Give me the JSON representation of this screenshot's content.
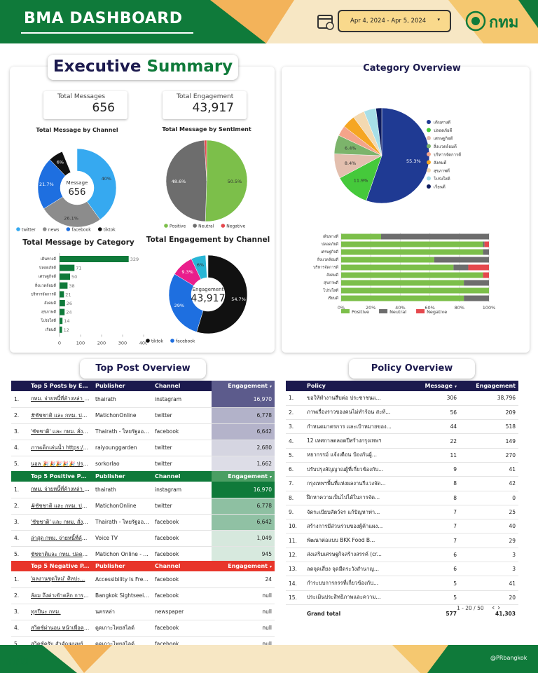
{
  "header": {
    "title": "BMA DASHBOARD",
    "date_range": "Apr 4, 2024 - Apr 5, 2024",
    "logo": "กทม"
  },
  "executive": {
    "title_a": "Executive",
    "title_b": "Summary",
    "kpis": [
      {
        "label": "Total Messages",
        "value": "656"
      },
      {
        "label": "Total Engagement",
        "value": "43,917"
      }
    ]
  },
  "chart_data": [
    {
      "type": "donut",
      "title": "Total Message by Channel",
      "center_label": "Message",
      "center_value": "656",
      "categories": [
        "twitter",
        "news",
        "facebook",
        "tiktok"
      ],
      "values": [
        40,
        26.1,
        21.7,
        6
      ],
      "value_labels": [
        "40%",
        "26.1%",
        "21.7%",
        "6%"
      ],
      "colors": [
        "#36a9f0",
        "#8c8c8c",
        "#1e6fe0",
        "#111111"
      ]
    },
    {
      "type": "pie",
      "title": "Total Message by Sentiment",
      "categories": [
        "Positive",
        "Neutral",
        "Negative"
      ],
      "values": [
        50.5,
        48.6,
        0.9
      ],
      "value_labels": [
        "50.5%",
        "48.6%",
        null
      ],
      "colors": [
        "#7cbf4a",
        "#6d6d6d",
        "#e5484d"
      ]
    },
    {
      "type": "hbar",
      "title": "Total Message by Category",
      "categories": [
        "เดินทางดี",
        "ปลอดภัยดี",
        "เศรษฐกิจดี",
        "สิ่งแวดล้อมดี",
        "บริหารจัดการดี",
        "สังคมดี",
        "สุขภาพดี",
        "โปร่งใสดี",
        "เรียนดี"
      ],
      "values": [
        329,
        71,
        50,
        38,
        21,
        26,
        24,
        14,
        12
      ],
      "color": "#0f7a3a",
      "xlim": [
        0,
        400
      ],
      "xticks": [
        0,
        100,
        200,
        300,
        400
      ]
    },
    {
      "type": "donut",
      "title": "Total Engagement by Channel",
      "center_label": "Engagement",
      "center_value": "43,917",
      "categories": [
        "tiktok",
        "facebook",
        null,
        null
      ],
      "values": [
        54.7,
        29,
        9.3,
        6
      ],
      "value_labels": [
        "54.7%",
        "29%",
        "9.3%",
        "6%"
      ],
      "colors": [
        "#111111",
        "#1e6fe0",
        "#e91e8c",
        "#29b6d6"
      ]
    },
    {
      "type": "pie",
      "title": "Category Overview",
      "categories": [
        "เดินทางดี",
        "ปลอดภัยดี",
        "เศรษฐกิจดี",
        "สิ่งแวดล้อมดี",
        "บริหารจัดการดี",
        "สังคมดี",
        "สุขภาพดี",
        "โปร่งใสดี",
        "เรียนดี"
      ],
      "values": [
        55.3,
        11.9,
        8.4,
        6.4,
        3.5,
        4.4,
        4,
        4.1,
        2
      ],
      "value_labels": [
        "55.3%",
        "11.9%",
        "8.4%",
        "6.4%",
        null,
        null,
        null,
        null,
        null
      ],
      "colors": [
        "#1f3a93",
        "#45c93b",
        "#e3bfae",
        "#7cb46b",
        "#f4a48a",
        "#f5a623",
        "#f3d9b1",
        "#a7dfe8",
        "#0d1b5e"
      ]
    },
    {
      "type": "stacked_hbar",
      "categories": [
        "เดินทางดี",
        "ปลอดภัยดี",
        "เศรษฐกิจดี",
        "สิ่งแวดล้อมดี",
        "บริหารจัดการดี",
        "สังคมดี",
        "สุขภาพดี",
        "โปร่งใสดี",
        "เรียนดี"
      ],
      "series": [
        {
          "name": "Positive",
          "color": "#7cbf4a",
          "values": [
            27,
            96,
            96,
            63,
            76,
            96,
            83,
            100,
            83
          ]
        },
        {
          "name": "Neutral",
          "color": "#6d6d6d",
          "values": [
            73,
            1,
            4,
            37,
            10,
            0,
            17,
            0,
            17
          ]
        },
        {
          "name": "Negative",
          "color": "#e5484d",
          "values": [
            0,
            3,
            0,
            0,
            14,
            4,
            0,
            0,
            0
          ]
        }
      ],
      "xlim": [
        0,
        100
      ],
      "xticks": [
        {
          "value": 0,
          "label": "0%"
        },
        {
          "value": 20,
          "label": "20%"
        },
        {
          "value": 40,
          "label": "40%"
        },
        {
          "value": 60,
          "label": "60%"
        },
        {
          "value": 80,
          "label": "80%"
        },
        {
          "value": 100,
          "label": "100%"
        }
      ]
    }
  ],
  "top_posts": {
    "title": "Top Post Overview",
    "tables": [
      {
        "columns": [
          "Top 5 Posts by En...",
          "Publisher",
          "Channel",
          "Engagement"
        ],
        "rows": [
          [
            "1.",
            "กทม. จ่ายหนี้ที่ค้างหล่า 2...",
            "thairath",
            "instagram",
            "16,970"
          ],
          [
            "2.",
            "#ชัชชาติ และ กทม. ปลดหนี้ ...",
            "MatichonOnline",
            "twitter",
            "6,778"
          ],
          [
            "3.",
            "'ชัชชาติ' และ กทม. สั่งจ่าย...",
            "Thairath - ไทยรัฐออนไ...",
            "facebook",
            "6,642"
          ],
          [
            "4.",
            "ภาพเด็กเล่นน้ำ https://t.co...",
            "raiyounggarden",
            "twitter",
            "2,680"
          ],
          [
            "5.",
            "นอล 🎉🎉🎉🎉🎉 ปรบ...",
            "sorkorlao",
            "twitter",
            "1,662"
          ]
        ]
      },
      {
        "columns": [
          "Top 5 Positive Po...",
          "Publisher",
          "Channel",
          "Engagement"
        ],
        "rows": [
          [
            "1.",
            "กทม. จ่ายหนี้ที่ค้างหล่า 2...",
            "thairath",
            "instagram",
            "16,970"
          ],
          [
            "2.",
            "#ชัชชาติ และ กทม. ปลดหนี้...",
            "MatichonOnline",
            "twitter",
            "6,778"
          ],
          [
            "3.",
            "'ชัชชาติ' และ กทม. สั่งจ่าย...",
            "Thairath - ไทยรัฐออนไลน์",
            "facebook",
            "6,642"
          ],
          [
            "4.",
            "ล่าสุด กทม. จ่ายหนี้ที่ค้างหล...",
            "Voice TV",
            "facebook",
            "1,049"
          ],
          [
            "5.",
            "ชัชชาติและ กทม. ปลดหนี้...",
            "Matichon Online - มติ...",
            "facebook",
            "945"
          ]
        ]
      },
      {
        "columns": [
          "Top 5 Negative P...",
          "Publisher",
          "Channel",
          "Engagement"
        ],
        "rows": [
          [
            "1.",
            "'ผลงานชุดใหม่' ศิลปะ...",
            "Accessibility Is Freed...",
            "facebook",
            "24"
          ],
          [
            "2.",
            "ล้อม ถึงค่าเข้าคลิก การเข้...",
            "Bangkok Sightseeing",
            "facebook",
            "null"
          ],
          [
            "3.",
            "ทุกปีนะ กทม.",
            "นครหล่า",
            "newspaper",
            "null"
          ],
          [
            "4.",
            "สวิตช์ผ่านอน หน้าเพื่อครอบ...",
            "ดูดเกาะไทยสไลด์",
            "facebook",
            "null"
          ],
          [
            "5.",
            "สวิตช์ครับ สำคัญมนุษย์ให้...",
            "ดูดเกาะไทยสไลด์",
            "facebook",
            "null"
          ]
        ]
      }
    ]
  },
  "policy": {
    "title": "Policy Overview",
    "columns": [
      "Policy",
      "Message",
      "Engagement"
    ],
    "rows": [
      [
        "1.",
        "ขอให้ทำงานสืบต่อ ประชาชนแ...",
        "306",
        "38,796"
      ],
      [
        "2.",
        "ภาพเรื่องราวของคนไม่ทำร้อน สะท้...",
        "56",
        "209"
      ],
      [
        "3.",
        "กำหนดมาตรการ และเป้าหมายของ...",
        "44",
        "518"
      ],
      [
        "4.",
        "12 เทศกาลตลอดปีสร้างกรุงเทพฯ",
        "22",
        "149"
      ],
      [
        "5.",
        "หยากรรม์ แจ้งเตือน ป้องกันผู้...",
        "11",
        "270"
      ],
      [
        "6.",
        "ปรับปรุงสัญญาณผู้ที่เกี่ยวข้องกับ...",
        "9",
        "41"
      ],
      [
        "7.",
        "กรุงเทพฯพื้นที่แห่งผลงานรีแวงจัด...",
        "8",
        "42"
      ],
      [
        "8.",
        "ฝึกหาความเป็นไปได้ในการจัด...",
        "8",
        "0"
      ],
      [
        "9.",
        "จัดระเบียบสัตว์จร แก้ปัญหาท่า...",
        "7",
        "25"
      ],
      [
        "10.",
        "สร้างการมีส่วนร่วมของผู้ค้าแผง...",
        "7",
        "40"
      ],
      [
        "11.",
        "พัฒนาต่อแบบ BKK Food B...",
        "7",
        "29"
      ],
      [
        "12.",
        "ส่งเสริมเศรษฐกิจสร้างสรรค์ (cr...",
        "6",
        "3"
      ],
      [
        "13.",
        "ลดจุดเสี่ยง จุดมืดระวังสำนาญ...",
        "6",
        "3"
      ],
      [
        "14.",
        "กำระบบการกรรที่เกี่ยวข้องกับ...",
        "5",
        "41"
      ],
      [
        "15.",
        "ประเมินประสิทธิภาพและความ...",
        "5",
        "20"
      ]
    ],
    "total": {
      "label": "Grand total",
      "message": "577",
      "engagement": "41,303"
    },
    "pagination": "1 - 20 / 50"
  },
  "footer": {
    "logo": "กทม",
    "handle": "@PRbangkok"
  }
}
